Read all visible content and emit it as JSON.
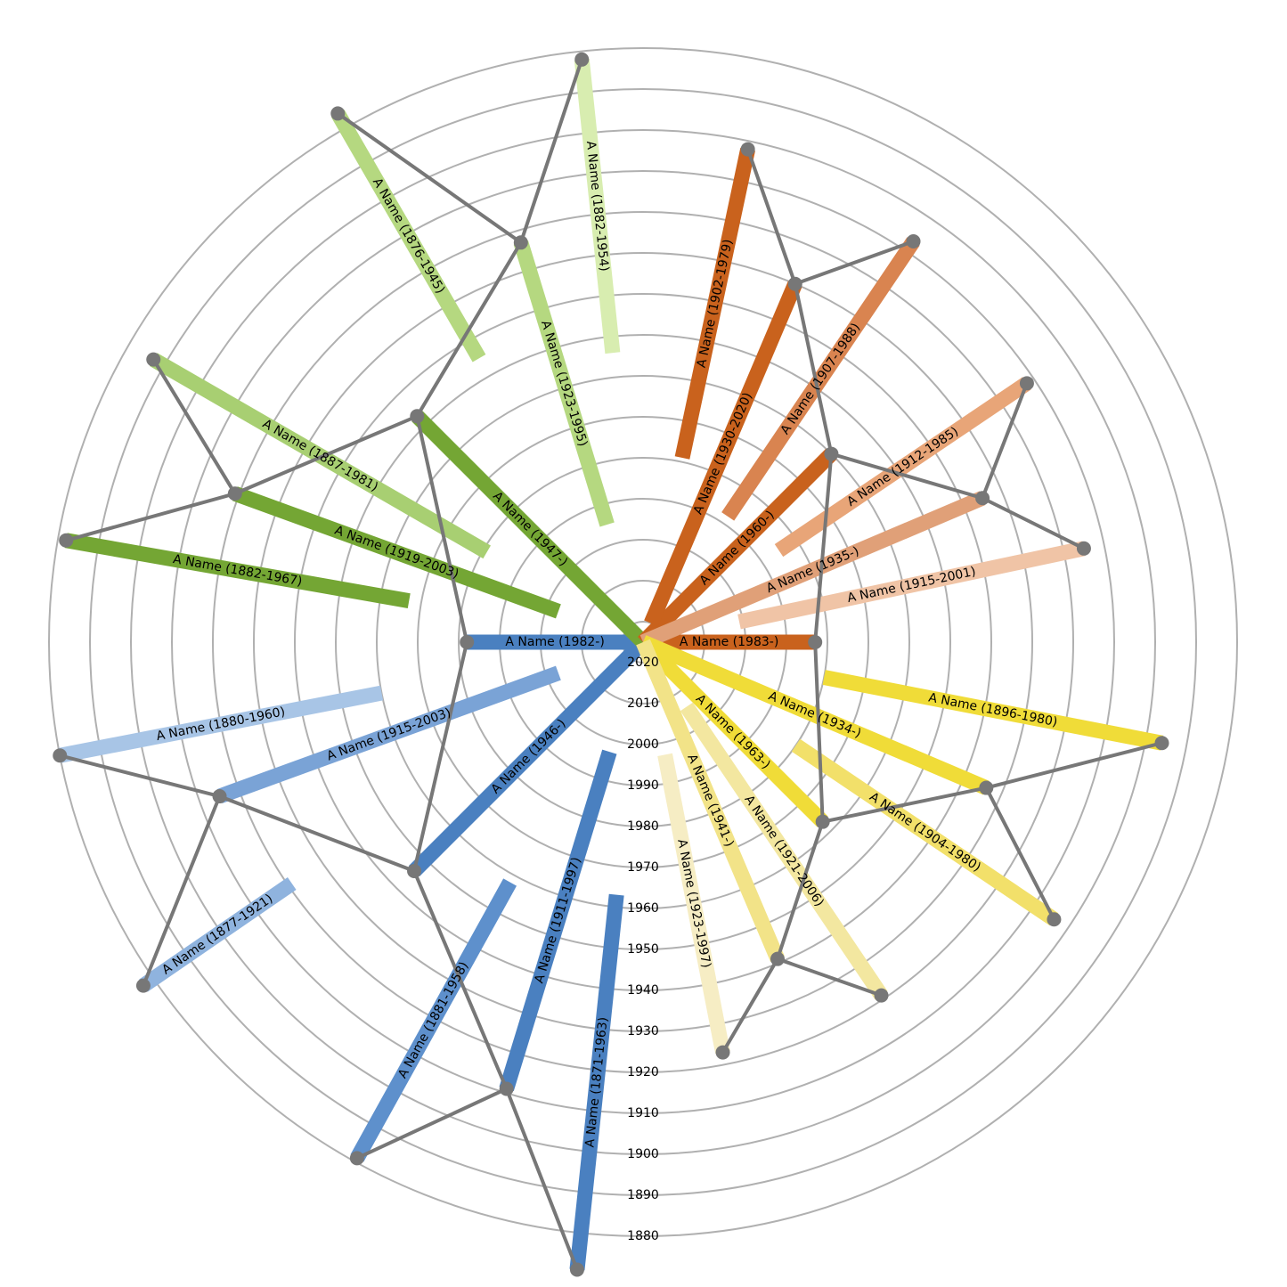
{
  "chart_data": {
    "type": "radial-family-tree",
    "title": "",
    "year_axis": {
      "ticks": [
        1880,
        1890,
        1900,
        1910,
        1920,
        1930,
        1940,
        1950,
        1960,
        1970,
        1980,
        1990,
        2000,
        2010,
        2020
      ],
      "range": [
        1870,
        2025
      ],
      "direction": "outward-is-earlier",
      "grid": true
    },
    "connector_color": "#777777",
    "people": [
      {
        "id": "c",
        "label": "A Name (1982-)",
        "birth": 1982,
        "death": null,
        "angle": 180,
        "parent": null,
        "color": "#4a80c0"
      },
      {
        "id": "m",
        "label": "A Name (1946-)",
        "birth": 1946,
        "death": null,
        "angle": 225,
        "parent": "c",
        "color": "#4a80c0"
      },
      {
        "id": "mm",
        "label": "A Name (1911-1997)",
        "birth": 1911,
        "death": 1997,
        "angle": 253,
        "parent": "m",
        "color": "#4a80c0"
      },
      {
        "id": "mf",
        "label": "A Name (1915-2003)",
        "birth": 1915,
        "death": 2003,
        "angle": 200,
        "parent": "m",
        "color": "#7aa3d6"
      },
      {
        "id": "a1",
        "label": "A Name (1871-1963)",
        "birth": 1871,
        "death": 1963,
        "angle": 264,
        "parent": "mm",
        "color": "#4a80c0"
      },
      {
        "id": "a2",
        "label": "A Name (1881-1958)",
        "birth": 1881,
        "death": 1958,
        "angle": 241,
        "parent": "mm",
        "color": "#5e90cc"
      },
      {
        "id": "a3",
        "label": "A Name (1877-1921)",
        "birth": 1877,
        "death": 1921,
        "angle": 214.5,
        "parent": "mf",
        "color": "#8fb3de"
      },
      {
        "id": "a4",
        "label": "A Name (1880-1960)",
        "birth": 1880,
        "death": 1960,
        "angle": 191,
        "parent": "mf",
        "color": "#a8c5e6"
      },
      {
        "id": "f",
        "label": "A Name (1947-)",
        "birth": 1947,
        "death": null,
        "angle": 135,
        "parent": "c",
        "color": "#74a634"
      },
      {
        "id": "fm",
        "label": "A Name (1919-2003)",
        "birth": 1919,
        "death": 2003,
        "angle": 160,
        "parent": "f",
        "color": "#74a634"
      },
      {
        "id": "ff",
        "label": "A Name (1923-1995)",
        "birth": 1923,
        "death": 1995,
        "angle": 107,
        "parent": "f",
        "color": "#b5d880"
      },
      {
        "id": "g1",
        "label": "A Name (1882-1967)",
        "birth": 1882,
        "death": 1967,
        "angle": 170,
        "parent": "fm",
        "color": "#74a634"
      },
      {
        "id": "g2",
        "label": "A Name (1887-1981)",
        "birth": 1887,
        "death": 1981,
        "angle": 150,
        "parent": "fm",
        "color": "#a8cf72"
      },
      {
        "id": "g3",
        "label": "A Name (1876-1945)",
        "birth": 1876,
        "death": 1945,
        "angle": 120,
        "parent": "ff",
        "color": "#b5d880"
      },
      {
        "id": "g4",
        "label": "A Name (1882-1954)",
        "birth": 1882,
        "death": 1954,
        "angle": 96,
        "parent": "ff",
        "color": "#d8edb0"
      },
      {
        "id": "s",
        "label": "A Name (1983-)",
        "birth": 1983,
        "death": null,
        "angle": 0,
        "parent": null,
        "color": "#c9621d"
      },
      {
        "id": "sf",
        "label": "A Name (1960-)",
        "birth": 1960,
        "death": null,
        "angle": 45,
        "parent": "s",
        "color": "#c9621d"
      },
      {
        "id": "sff",
        "label": "A Name (1930-2020)",
        "birth": 1930,
        "death": 2020,
        "angle": 67,
        "parent": "sf",
        "color": "#c9621d"
      },
      {
        "id": "sfm",
        "label": "A Name (1935-)",
        "birth": 1935,
        "death": null,
        "angle": 23,
        "parent": "sf",
        "color": "#e0a078"
      },
      {
        "id": "h1",
        "label": "A Name (1902-1979)",
        "birth": 1902,
        "death": 1979,
        "angle": 78,
        "parent": "sff",
        "color": "#c9621d"
      },
      {
        "id": "h2",
        "label": "A Name (1907-1988)",
        "birth": 1907,
        "death": 1988,
        "angle": 56,
        "parent": "sff",
        "color": "#d98450"
      },
      {
        "id": "h3",
        "label": "A Name (1912-1985)",
        "birth": 1912,
        "death": 1985,
        "angle": 34,
        "parent": "sfm",
        "color": "#e8a578"
      },
      {
        "id": "h4",
        "label": "A Name (1915-2001)",
        "birth": 1915,
        "death": 2001,
        "angle": 12,
        "parent": "sfm",
        "color": "#f0c4a6"
      },
      {
        "id": "sm",
        "label": "A Name (1963-)",
        "birth": 1963,
        "death": null,
        "angle": 315,
        "parent": "s",
        "color": "#f0dc38"
      },
      {
        "id": "smf",
        "label": "A Name (1934-)",
        "birth": 1934,
        "death": null,
        "angle": 337,
        "parent": "sm",
        "color": "#f0dc38"
      },
      {
        "id": "smm",
        "label": "A Name (1941-)",
        "birth": 1941,
        "death": null,
        "angle": 293,
        "parent": "sm",
        "color": "#f2e388"
      },
      {
        "id": "k1",
        "label": "A Name (1896-1980)",
        "birth": 1896,
        "death": 1980,
        "angle": 349,
        "parent": "smf",
        "color": "#f0dc38"
      },
      {
        "id": "k2",
        "label": "A Name (1904-1980)",
        "birth": 1904,
        "death": 1980,
        "angle": 326,
        "parent": "smf",
        "color": "#f2e06a"
      },
      {
        "id": "k3",
        "label": "A Name (1921-2006)",
        "birth": 1921,
        "death": 2006,
        "angle": 304,
        "parent": "smm",
        "color": "#f3e7a0"
      },
      {
        "id": "k4",
        "label": "A Name (1923-1997)",
        "birth": 1923,
        "death": 1997,
        "angle": 281,
        "parent": "smm",
        "color": "#f6edc4"
      }
    ]
  }
}
